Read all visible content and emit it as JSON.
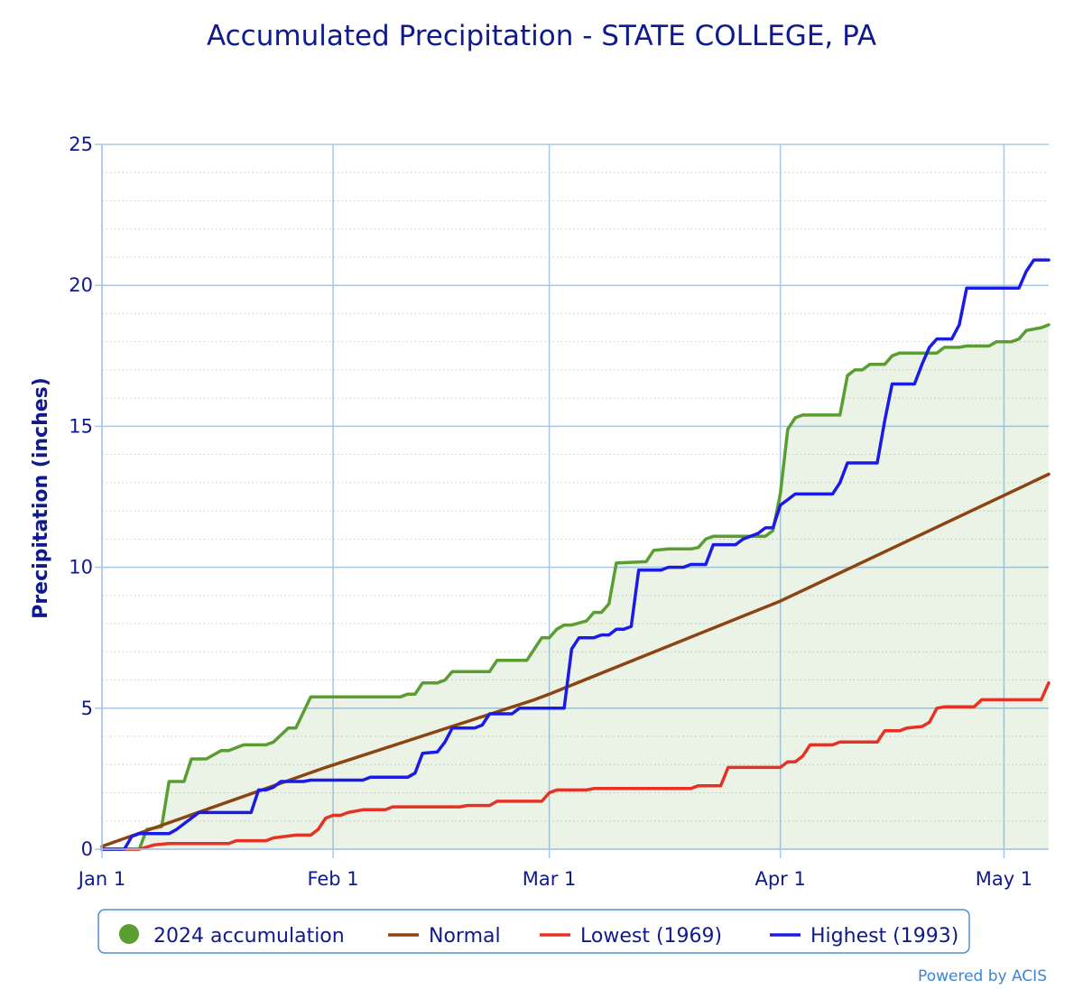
{
  "title": "Accumulated Precipitation - STATE COLLEGE, PA",
  "credit": "Powered by ACIS",
  "chart_data": {
    "type": "area",
    "title": "Accumulated Precipitation - STATE COLLEGE, PA",
    "ylabel": "Precipitation (inches)",
    "xlabel": "",
    "xlim": [
      0,
      127
    ],
    "ylim": [
      0,
      25
    ],
    "y_ticks": [
      "0",
      "5",
      "10",
      "15",
      "20",
      "25"
    ],
    "x_ticks": [
      {
        "label": "Jan 1",
        "day": 0
      },
      {
        "label": "Feb 1",
        "day": 31
      },
      {
        "label": "Mar 1",
        "day": 60
      },
      {
        "label": "Apr 1",
        "day": 91
      },
      {
        "label": "May 1",
        "day": 121
      }
    ],
    "grid": true,
    "legend_position": "bottom",
    "series": [
      {
        "name": "2024 accumulation",
        "color": "#5a9e32",
        "fill": true,
        "points": [
          [
            0,
            0
          ],
          [
            5,
            0
          ],
          [
            6,
            0.7
          ],
          [
            8,
            0.8
          ],
          [
            9,
            2.4
          ],
          [
            11,
            2.4
          ],
          [
            12,
            3.2
          ],
          [
            14,
            3.2
          ],
          [
            16,
            3.5
          ],
          [
            17,
            3.5
          ],
          [
            19,
            3.7
          ],
          [
            22,
            3.7
          ],
          [
            23,
            3.8
          ],
          [
            25,
            4.3
          ],
          [
            26,
            4.3
          ],
          [
            28,
            5.4
          ],
          [
            40,
            5.4
          ],
          [
            41,
            5.5
          ],
          [
            42,
            5.5
          ],
          [
            43,
            5.9
          ],
          [
            45,
            5.9
          ],
          [
            46,
            6.0
          ],
          [
            47,
            6.3
          ],
          [
            52,
            6.3
          ],
          [
            53,
            6.7
          ],
          [
            57,
            6.7
          ],
          [
            59,
            7.5
          ],
          [
            60,
            7.5
          ],
          [
            61,
            7.8
          ],
          [
            62,
            7.95
          ],
          [
            63,
            7.95
          ],
          [
            65,
            8.1
          ],
          [
            66,
            8.4
          ],
          [
            67,
            8.4
          ],
          [
            68,
            8.7
          ],
          [
            69,
            10.15
          ],
          [
            73,
            10.2
          ],
          [
            74,
            10.6
          ],
          [
            76,
            10.65
          ],
          [
            79,
            10.65
          ],
          [
            80,
            10.7
          ],
          [
            81,
            11.0
          ],
          [
            82,
            11.1
          ],
          [
            89,
            11.1
          ],
          [
            90,
            11.3
          ],
          [
            91,
            12.6
          ],
          [
            92,
            14.9
          ],
          [
            93,
            15.3
          ],
          [
            94,
            15.4
          ],
          [
            99,
            15.4
          ],
          [
            100,
            16.8
          ],
          [
            101,
            17.0
          ],
          [
            102,
            17.0
          ],
          [
            103,
            17.2
          ],
          [
            105,
            17.2
          ],
          [
            106,
            17.5
          ],
          [
            107,
            17.6
          ],
          [
            112,
            17.6
          ],
          [
            113,
            17.8
          ],
          [
            115,
            17.8
          ],
          [
            116,
            17.85
          ],
          [
            119,
            17.85
          ],
          [
            120,
            18.0
          ],
          [
            122,
            18.0
          ],
          [
            123,
            18.1
          ],
          [
            124,
            18.4
          ],
          [
            126,
            18.5
          ],
          [
            127,
            18.6
          ]
        ]
      },
      {
        "name": "Normal",
        "color": "#8b4513",
        "fill": false,
        "points": [
          [
            0,
            0.1
          ],
          [
            30,
            2.9
          ],
          [
            58,
            5.3
          ],
          [
            60,
            5.5
          ],
          [
            91,
            8.8
          ],
          [
            127,
            13.3
          ]
        ]
      },
      {
        "name": "Lowest (1969)",
        "color": "#e63224",
        "fill": false,
        "points": [
          [
            0,
            0
          ],
          [
            5,
            0
          ],
          [
            7,
            0.15
          ],
          [
            9,
            0.2
          ],
          [
            16,
            0.2
          ],
          [
            17,
            0.2
          ],
          [
            18,
            0.3
          ],
          [
            22,
            0.3
          ],
          [
            23,
            0.4
          ],
          [
            26,
            0.5
          ],
          [
            28,
            0.5
          ],
          [
            29,
            0.7
          ],
          [
            30,
            1.1
          ],
          [
            31,
            1.2
          ],
          [
            32,
            1.2
          ],
          [
            33,
            1.3
          ],
          [
            35,
            1.4
          ],
          [
            38,
            1.4
          ],
          [
            39,
            1.5
          ],
          [
            48,
            1.5
          ],
          [
            49,
            1.55
          ],
          [
            52,
            1.55
          ],
          [
            53,
            1.7
          ],
          [
            59,
            1.7
          ],
          [
            60,
            2.0
          ],
          [
            61,
            2.1
          ],
          [
            65,
            2.1
          ],
          [
            66,
            2.15
          ],
          [
            79,
            2.15
          ],
          [
            80,
            2.25
          ],
          [
            83,
            2.25
          ],
          [
            84,
            2.9
          ],
          [
            85,
            2.9
          ],
          [
            91,
            2.9
          ],
          [
            92,
            3.1
          ],
          [
            93,
            3.1
          ],
          [
            94,
            3.3
          ],
          [
            95,
            3.7
          ],
          [
            98,
            3.7
          ],
          [
            99,
            3.8
          ],
          [
            104,
            3.8
          ],
          [
            105,
            4.2
          ],
          [
            107,
            4.2
          ],
          [
            108,
            4.3
          ],
          [
            110,
            4.35
          ],
          [
            111,
            4.5
          ],
          [
            112,
            5.0
          ],
          [
            113,
            5.05
          ],
          [
            117,
            5.05
          ],
          [
            118,
            5.3
          ],
          [
            126,
            5.3
          ],
          [
            127,
            5.9
          ]
        ]
      },
      {
        "name": "Highest (1993)",
        "color": "#1b1be6",
        "fill": false,
        "points": [
          [
            0,
            0
          ],
          [
            3,
            0
          ],
          [
            4,
            0.45
          ],
          [
            5,
            0.55
          ],
          [
            9,
            0.55
          ],
          [
            10,
            0.7
          ],
          [
            12,
            1.1
          ],
          [
            13,
            1.3
          ],
          [
            20,
            1.3
          ],
          [
            21,
            2.1
          ],
          [
            22,
            2.1
          ],
          [
            23,
            2.2
          ],
          [
            24,
            2.4
          ],
          [
            27,
            2.4
          ],
          [
            28,
            2.45
          ],
          [
            35,
            2.45
          ],
          [
            36,
            2.55
          ],
          [
            41,
            2.55
          ],
          [
            42,
            2.7
          ],
          [
            43,
            3.4
          ],
          [
            45,
            3.45
          ],
          [
            46,
            3.8
          ],
          [
            47,
            4.3
          ],
          [
            50,
            4.3
          ],
          [
            51,
            4.4
          ],
          [
            52,
            4.8
          ],
          [
            55,
            4.8
          ],
          [
            56,
            5.0
          ],
          [
            62,
            5.0
          ],
          [
            63,
            7.1
          ],
          [
            64,
            7.5
          ],
          [
            66,
            7.5
          ],
          [
            67,
            7.6
          ],
          [
            68,
            7.6
          ],
          [
            69,
            7.8
          ],
          [
            70,
            7.8
          ],
          [
            71,
            7.9
          ],
          [
            72,
            9.9
          ],
          [
            75,
            9.9
          ],
          [
            76,
            10.0
          ],
          [
            78,
            10.0
          ],
          [
            79,
            10.1
          ],
          [
            81,
            10.1
          ],
          [
            82,
            10.8
          ],
          [
            85,
            10.8
          ],
          [
            86,
            11.0
          ],
          [
            88,
            11.2
          ],
          [
            89,
            11.4
          ],
          [
            90,
            11.4
          ],
          [
            91,
            12.2
          ],
          [
            92,
            12.4
          ],
          [
            93,
            12.6
          ],
          [
            98,
            12.6
          ],
          [
            99,
            13.0
          ],
          [
            100,
            13.7
          ],
          [
            104,
            13.7
          ],
          [
            105,
            15.2
          ],
          [
            106,
            16.5
          ],
          [
            109,
            16.5
          ],
          [
            110,
            17.2
          ],
          [
            111,
            17.8
          ],
          [
            112,
            18.1
          ],
          [
            114,
            18.1
          ],
          [
            115,
            18.6
          ],
          [
            116,
            19.9
          ],
          [
            123,
            19.9
          ],
          [
            124,
            20.5
          ],
          [
            125,
            20.9
          ],
          [
            127,
            20.9
          ]
        ]
      }
    ]
  }
}
